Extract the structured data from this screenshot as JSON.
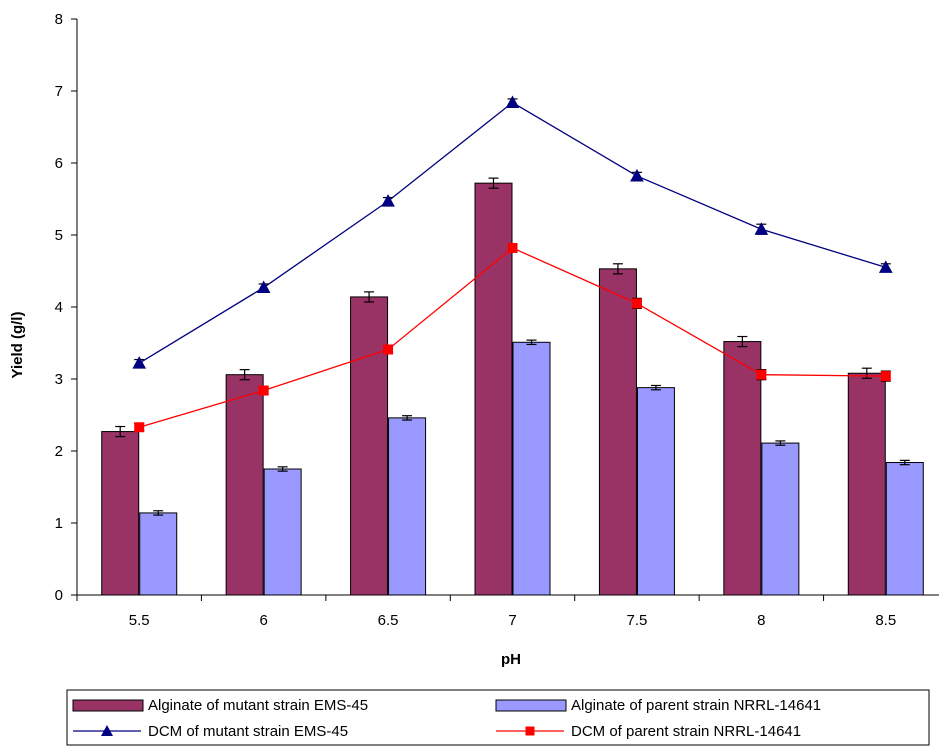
{
  "chart_data": {
    "type": "bar",
    "xlabel": "pH",
    "ylabel": "Yield (g/l)",
    "categories": [
      "5.5",
      "6",
      "6.5",
      "7",
      "7.5",
      "8",
      "8.5"
    ],
    "ylim": [
      0,
      8
    ],
    "yticks": [
      "0",
      "1",
      "2",
      "3",
      "4",
      "5",
      "6",
      "7",
      "8"
    ],
    "grid": false,
    "legend_position": "bottom",
    "bar_series": [
      {
        "name": "Alginate  of mutant strain EMS-45",
        "color": "#993366",
        "values": [
          2.27,
          3.06,
          4.14,
          5.72,
          4.53,
          3.52,
          3.08
        ],
        "errors": [
          0.07,
          0.07,
          0.07,
          0.07,
          0.07,
          0.07,
          0.07
        ]
      },
      {
        "name": "Alginate  of parent strain NRRL-14641",
        "color": "#9999FF",
        "values": [
          1.14,
          1.75,
          2.46,
          3.51,
          2.88,
          2.11,
          1.84
        ],
        "errors": [
          0.03,
          0.03,
          0.03,
          0.03,
          0.03,
          0.03,
          0.03
        ]
      }
    ],
    "line_series": [
      {
        "name": "DCM of mutant strain EMS-45",
        "color": "#000080",
        "marker": "triangle",
        "values": [
          3.22,
          4.27,
          5.47,
          6.84,
          5.82,
          5.08,
          4.55
        ],
        "errors": [
          0.05,
          0.05,
          0.05,
          0.05,
          0.05,
          0.07,
          0.05
        ]
      },
      {
        "name": "DCM of parent strain NRRL-14641",
        "color": "#FF0000",
        "marker": "square",
        "values": [
          2.33,
          2.84,
          3.41,
          4.82,
          4.05,
          3.06,
          3.04
        ],
        "errors": [
          0.05,
          0.05,
          0.05,
          0.05,
          0.07,
          0.07,
          0.07
        ]
      }
    ]
  }
}
